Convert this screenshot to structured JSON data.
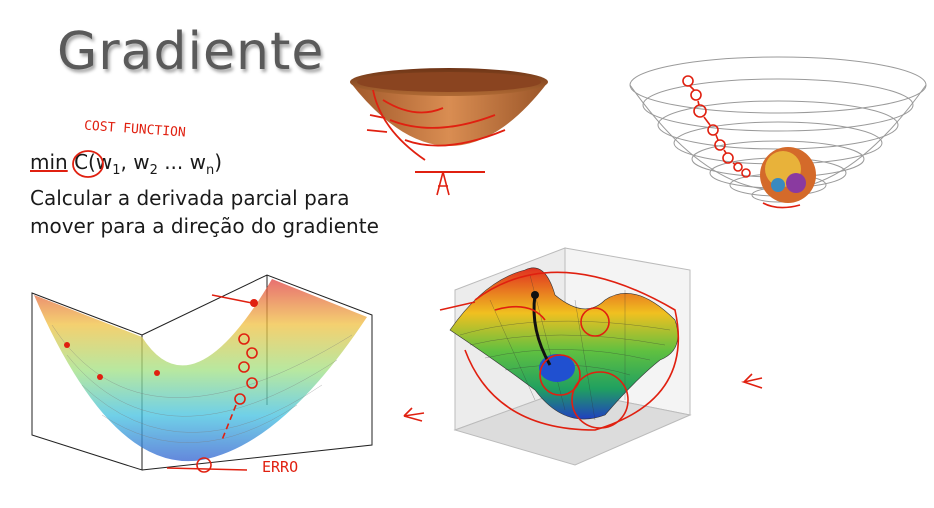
{
  "slide": {
    "title": "Gradiente",
    "annotation_cost": "COST FUNCTION",
    "formula": {
      "prefix": "min",
      "func": "C(w",
      "sub1": "1",
      "mid1": ", w",
      "sub2": "2",
      "mid2": " ... w",
      "subn": "n",
      "close": ")"
    },
    "text_line1": "Calcular a derivada parcial para",
    "text_line2": "mover para a direção do gradiente",
    "annotation_error": "ERRO"
  },
  "icons": [
    "bowl-image",
    "wire-bowl-ball-image",
    "error-surface-image",
    "bumpy-surface-image"
  ],
  "colors": {
    "ink": "#e02010",
    "title": "#5a5a5a",
    "text": "#1a1a1a"
  }
}
